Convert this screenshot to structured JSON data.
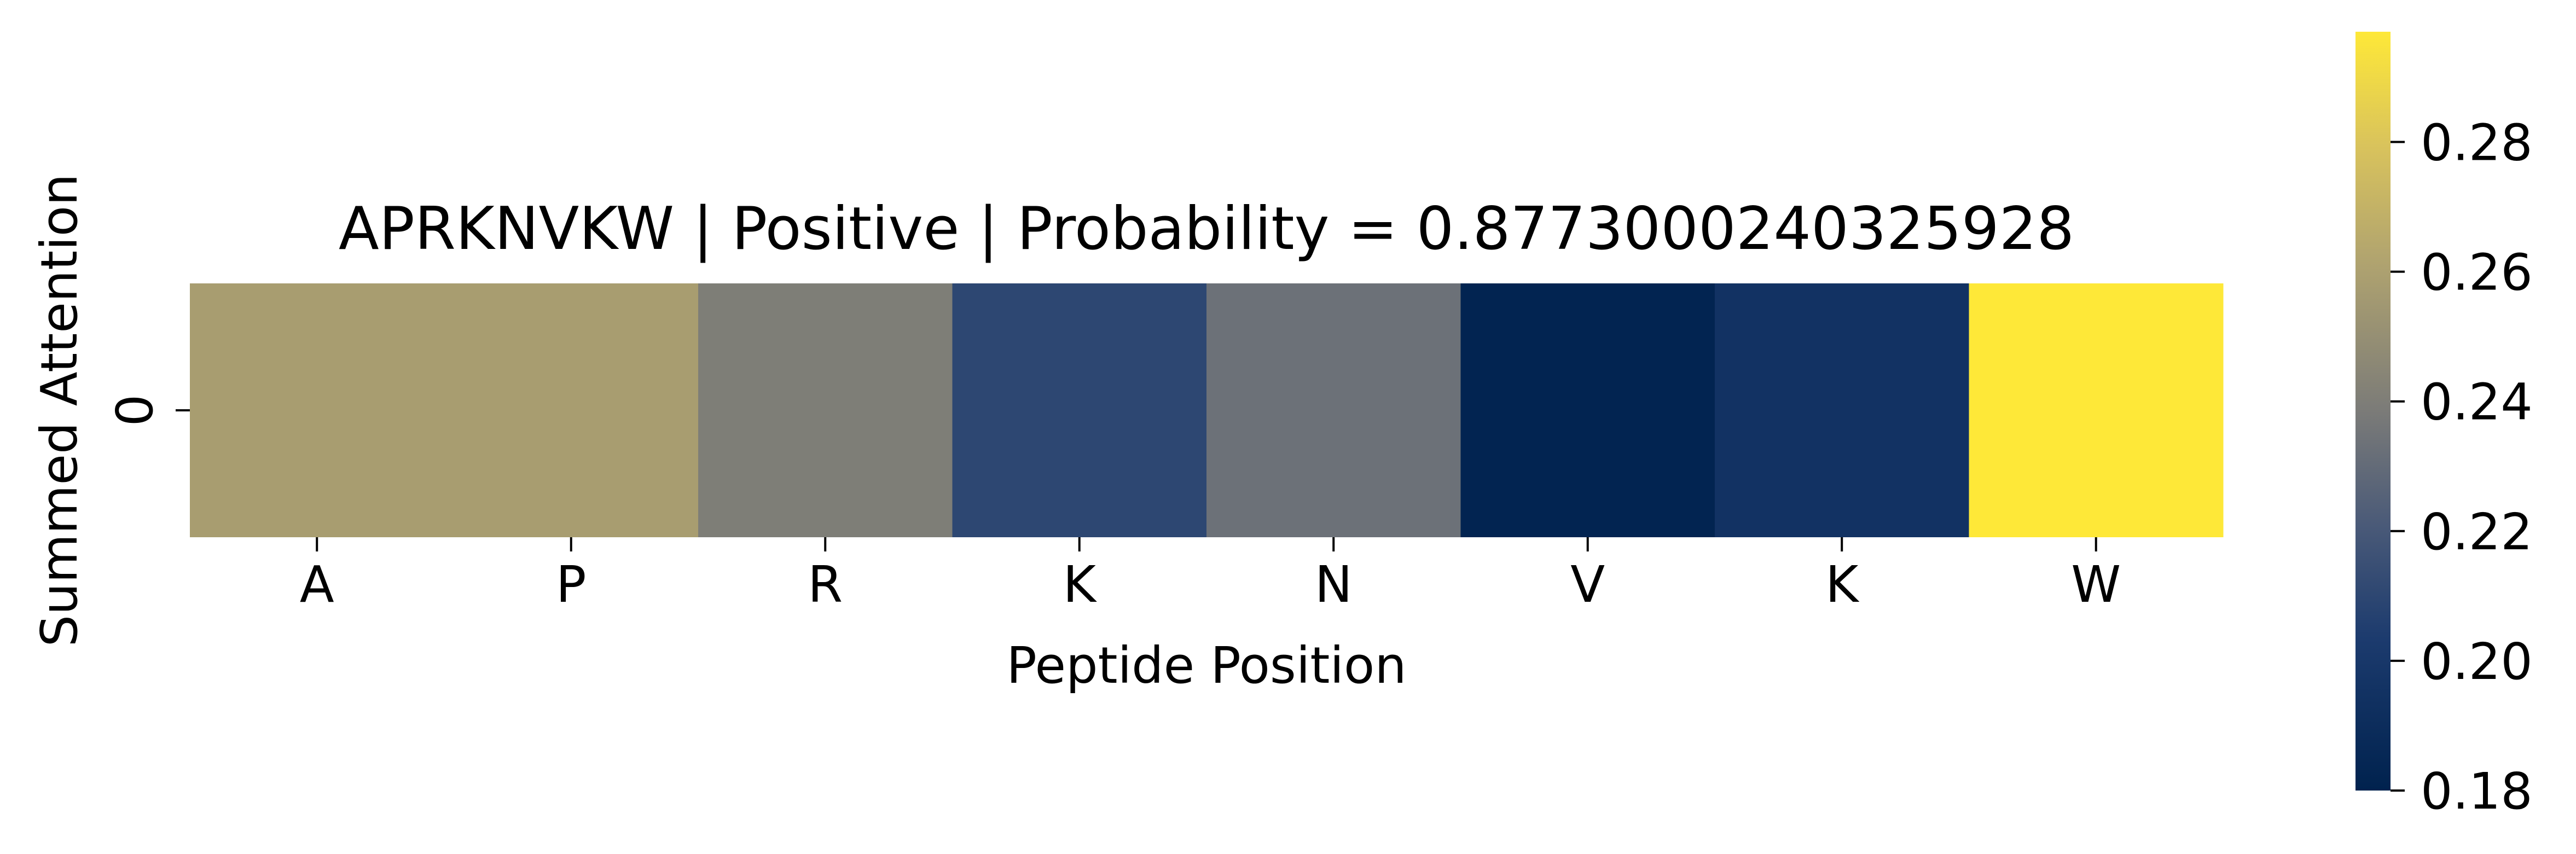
{
  "chart_data": {
    "type": "heatmap",
    "title": "APRKNVKW | Positive | Probability = 0.8773000240325928",
    "xlabel": "Peptide Position",
    "ylabel": "Summed Attention",
    "x_tick_labels": [
      "A",
      "P",
      "R",
      "K",
      "N",
      "V",
      "K",
      "W"
    ],
    "y_tick_labels": [
      "0"
    ],
    "rows": [
      [
        0.258,
        0.258,
        0.24,
        0.21,
        0.233,
        0.182,
        0.195,
        0.297
      ]
    ],
    "colormap": "cividis",
    "vmin": 0.18,
    "vmax": 0.297,
    "colorbar_ticks": [
      0.18,
      0.2,
      0.22,
      0.24,
      0.26,
      0.28
    ],
    "colorbar_tick_labels": [
      "0.18",
      "0.20",
      "0.22",
      "0.24",
      "0.26",
      "0.28"
    ]
  }
}
